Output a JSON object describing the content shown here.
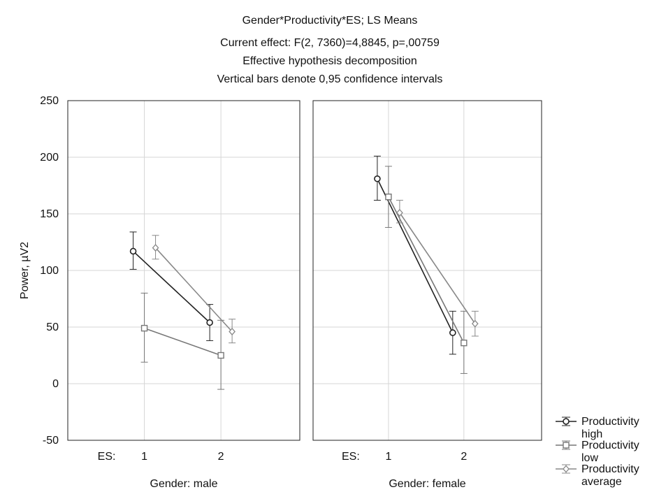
{
  "chart_data": {
    "type": "line",
    "title_lines": [
      "Gender*Productivity*ES; LS Means",
      "Current effect: F(2, 7360)=4,8845, p=,00759",
      "Effective hypothesis decomposition",
      "Vertical bars denote 0,95 confidence intervals"
    ],
    "ylabel": "Power, µV2",
    "ylim": [
      -50,
      250
    ],
    "yticks": [
      "250",
      "200",
      "150",
      "100",
      "50",
      "0",
      "-50"
    ],
    "x_factor_label": "ES:",
    "categories": [
      "1",
      "2"
    ],
    "grid": true,
    "legend_position": "bottom-right",
    "panels": [
      {
        "label": "Gender: male",
        "series": [
          {
            "name": "Productivity high",
            "marker": "circle",
            "color": "#222222",
            "values": [
              117,
              54
            ],
            "ci_low": [
              101,
              38
            ],
            "ci_high": [
              134,
              70
            ]
          },
          {
            "name": "Productivity low",
            "marker": "square",
            "color": "#777777",
            "values": [
              49,
              25
            ],
            "ci_low": [
              19,
              -5
            ],
            "ci_high": [
              80,
              56
            ]
          },
          {
            "name": "Productivity average",
            "marker": "diamond",
            "color": "#888888",
            "values": [
              120,
              46
            ],
            "ci_low": [
              110,
              36
            ],
            "ci_high": [
              131,
              57
            ]
          }
        ]
      },
      {
        "label": "Gender: female",
        "series": [
          {
            "name": "Productivity high",
            "marker": "circle",
            "color": "#222222",
            "values": [
              181,
              45
            ],
            "ci_low": [
              162,
              26
            ],
            "ci_high": [
              201,
              64
            ]
          },
          {
            "name": "Productivity low",
            "marker": "square",
            "color": "#777777",
            "values": [
              165,
              36
            ],
            "ci_low": [
              138,
              9
            ],
            "ci_high": [
              192,
              64
            ]
          },
          {
            "name": "Productivity average",
            "marker": "diamond",
            "color": "#888888",
            "values": [
              151,
              53
            ],
            "ci_low": [
              142,
              42
            ],
            "ci_high": [
              162,
              64
            ]
          }
        ]
      }
    ],
    "legend": [
      {
        "line1": "Productivity",
        "line2": "high",
        "marker": "circle",
        "color": "#222222"
      },
      {
        "line1": "Productivity",
        "line2": "low",
        "marker": "square",
        "color": "#777777"
      },
      {
        "line1": "Productivity",
        "line2": "average",
        "marker": "diamond",
        "color": "#888888"
      }
    ]
  }
}
